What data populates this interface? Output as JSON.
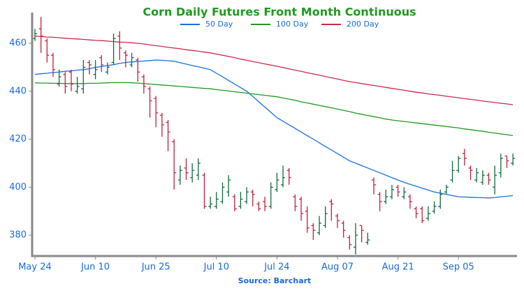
{
  "chart_data": {
    "type": "ohlc",
    "title": "Corn Daily Futures Front Month Continuous",
    "source": "Source: Barchart",
    "categories": [
      "May 24",
      null,
      null,
      null,
      null,
      null,
      null,
      null,
      null,
      null,
      "Jun 10",
      null,
      null,
      null,
      null,
      null,
      null,
      null,
      null,
      null,
      "Jun 25",
      null,
      null,
      null,
      null,
      null,
      null,
      null,
      null,
      null,
      "Jul 10",
      null,
      null,
      null,
      null,
      null,
      null,
      null,
      null,
      null,
      "Jul 24",
      null,
      null,
      null,
      null,
      null,
      null,
      null,
      null,
      null,
      "Aug 07",
      null,
      null,
      null,
      null,
      null,
      null,
      null,
      null,
      null,
      "Aug 21",
      null,
      null,
      null,
      null,
      null,
      null,
      null,
      null,
      null,
      "Sep 05",
      null,
      null,
      null,
      null,
      null,
      null,
      null,
      null,
      null
    ],
    "ohlc": {
      "open": [
        462,
        466,
        461,
        455,
        443,
        447,
        448,
        440,
        441,
        452,
        447,
        454,
        448,
        452,
        463,
        456,
        451,
        453,
        446,
        441,
        437,
        430,
        427,
        419,
        403,
        408,
        404,
        405,
        405,
        392,
        392,
        394,
        398,
        396,
        392,
        394,
        398,
        393,
        394,
        392,
        399,
        401,
        407,
        396,
        395,
        390,
        384,
        381,
        384,
        394,
        388,
        385,
        379,
        375,
        384,
        377,
        403,
        397,
        394,
        396,
        400,
        396,
        396,
        391,
        391,
        387,
        390,
        392,
        398,
        403,
        407,
        414,
        408,
        403,
        402,
        405,
        400,
        406,
        413,
        410
      ],
      "high": [
        466,
        471,
        462,
        456,
        449,
        448,
        449,
        446,
        453,
        453,
        453,
        455,
        452,
        464,
        465,
        457,
        456,
        454,
        447,
        442,
        438,
        431,
        428,
        420,
        409,
        412,
        410,
        412,
        406,
        396,
        398,
        402,
        405,
        397,
        398,
        400,
        399,
        394,
        396,
        402,
        406,
        409,
        408,
        397,
        396,
        392,
        385,
        388,
        392,
        395,
        389,
        386,
        380,
        385,
        384,
        381,
        404,
        398,
        399,
        401,
        401,
        400,
        397,
        392,
        392,
        392,
        394,
        399,
        401,
        411,
        413,
        416,
        409,
        408,
        407,
        406,
        409,
        414,
        413,
        414
      ],
      "low": [
        461,
        456,
        452,
        446,
        442,
        439,
        440,
        439,
        439,
        447,
        445,
        448,
        447,
        451,
        453,
        450,
        450,
        444,
        439,
        429,
        425,
        421,
        415,
        399,
        401,
        403,
        402,
        403,
        391,
        391,
        391,
        393,
        396,
        390,
        391,
        393,
        392,
        390,
        390,
        391,
        398,
        400,
        401,
        390,
        386,
        381,
        378,
        380,
        383,
        386,
        383,
        379,
        374,
        372,
        377,
        376,
        397,
        390,
        393,
        395,
        396,
        395,
        391,
        387,
        385,
        386,
        389,
        391,
        397,
        402,
        406,
        409,
        403,
        402,
        401,
        401,
        397,
        404,
        408,
        409
      ],
      "close": [
        464,
        463,
        455,
        449,
        446,
        442,
        443,
        442,
        450,
        451,
        449,
        451,
        450,
        462,
        458,
        455,
        454,
        448,
        442,
        436,
        431,
        426,
        423,
        406,
        407,
        406,
        407,
        410,
        392,
        393,
        395,
        400,
        403,
        391,
        395,
        398,
        397,
        391,
        392,
        400,
        403,
        404,
        404,
        392,
        389,
        383,
        382,
        385,
        389,
        393,
        386,
        382,
        376,
        380,
        382,
        378,
        401,
        394,
        396,
        399,
        398,
        398,
        394,
        389,
        386,
        389,
        392,
        397,
        400,
        407,
        412,
        412,
        407,
        406,
        405,
        403,
        405,
        412,
        411,
        412
      ]
    },
    "up_color": "#0d6b3c",
    "down_color": "#c21f3f",
    "series": [
      {
        "name": "50 Day",
        "color": "#1570e0",
        "values": [
          447.0,
          447.3,
          447.5,
          447.8,
          448.0,
          448.3,
          448.5,
          448.8,
          449.0,
          449.4,
          449.9,
          450.3,
          450.7,
          451.1,
          451.6,
          452.0,
          452.2,
          452.4,
          452.6,
          452.8,
          453.0,
          452.9,
          452.7,
          452.5,
          451.9,
          451.3,
          450.7,
          450.2,
          449.6,
          449.0,
          447.5,
          446.0,
          444.5,
          443.0,
          441.5,
          440.0,
          437.8,
          435.6,
          433.4,
          431.2,
          429.0,
          427.5,
          426.0,
          424.5,
          423.0,
          421.5,
          420.0,
          418.5,
          417.0,
          415.5,
          414.0,
          412.5,
          411.0,
          410.0,
          409.0,
          408.0,
          407.0,
          406.0,
          405.0,
          404.0,
          403.0,
          402.0,
          401.2,
          400.4,
          399.6,
          398.8,
          398.0,
          397.5,
          397.0,
          396.5,
          396.0,
          395.9,
          395.8,
          395.7,
          395.6,
          395.5,
          395.7,
          396.0,
          396.2,
          396.5
        ]
      },
      {
        "name": "100 Day",
        "color": "#1f9a1f",
        "values": [
          443.5,
          443.4,
          443.4,
          443.3,
          443.3,
          443.2,
          443.2,
          443.2,
          443.2,
          443.3,
          443.3,
          443.4,
          443.5,
          443.6,
          443.6,
          443.6,
          443.5,
          443.4,
          443.2,
          443.0,
          442.8,
          442.6,
          442.4,
          442.2,
          442.0,
          441.8,
          441.6,
          441.4,
          441.2,
          441.0,
          440.7,
          440.4,
          440.1,
          439.8,
          439.5,
          439.2,
          438.9,
          438.6,
          438.3,
          438.0,
          437.7,
          437.2,
          436.7,
          436.2,
          435.6,
          435.1,
          434.6,
          434.1,
          433.6,
          433.1,
          432.6,
          432.0,
          431.5,
          430.9,
          430.4,
          429.9,
          429.4,
          428.9,
          428.4,
          428.0,
          427.7,
          427.4,
          427.1,
          426.8,
          426.5,
          426.2,
          425.9,
          425.6,
          425.3,
          425.0,
          424.7,
          424.3,
          424.0,
          423.6,
          423.3,
          422.9,
          422.6,
          422.2,
          421.9,
          421.5
        ]
      },
      {
        "name": "200 Day",
        "color": "#cc2a4a",
        "values": [
          463.0,
          462.8,
          462.6,
          462.5,
          462.3,
          462.1,
          461.9,
          461.8,
          461.6,
          461.4,
          461.2,
          461.1,
          460.9,
          460.7,
          460.5,
          460.4,
          460.2,
          460.0,
          459.7,
          459.3,
          459.0,
          458.7,
          458.3,
          458.0,
          457.7,
          457.3,
          457.0,
          456.7,
          456.3,
          456.0,
          455.5,
          455.0,
          454.5,
          454.0,
          453.4,
          452.9,
          452.4,
          451.9,
          451.4,
          450.9,
          450.4,
          449.9,
          449.3,
          448.8,
          448.3,
          447.7,
          447.2,
          446.7,
          446.1,
          445.6,
          445.1,
          444.5,
          444.0,
          443.6,
          443.2,
          442.8,
          442.4,
          442.0,
          441.6,
          441.2,
          440.8,
          440.4,
          440.0,
          439.6,
          439.3,
          438.9,
          438.6,
          438.3,
          437.9,
          437.6,
          437.3,
          436.9,
          436.6,
          436.3,
          435.9,
          435.6,
          435.3,
          435.0,
          434.7,
          434.4
        ]
      }
    ],
    "ylim": [
      371.3,
      472.8
    ],
    "yticks": [
      380,
      400,
      420,
      440,
      460
    ]
  }
}
